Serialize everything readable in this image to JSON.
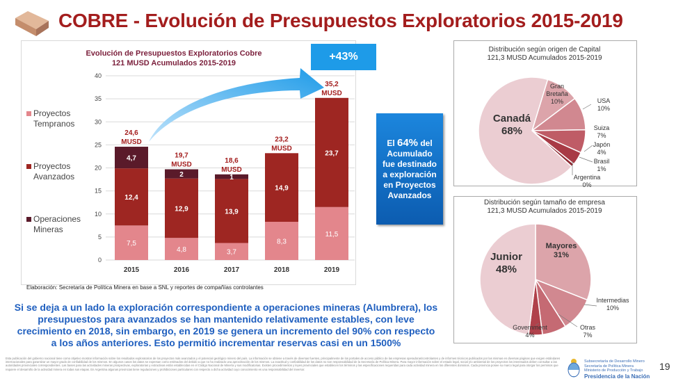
{
  "title": "COBRE - Evolución de Presupuestos Exploratorios 2015-2019",
  "growth_badge": "+43%",
  "callout": {
    "pre": "El ",
    "pct": "64%",
    "post": " del Acumulado fue destinado a exploración en Proyectos Avanzados"
  },
  "source": "Elaboración: Secretaría de Política Minera en base a SNL y reportes de compañías controlantes",
  "summary": "Si se deja a un lado la exploración correspondiente a operaciones mineras (Alumbrera), los presupuestos para avanzados se han mantenido relativamente estables, con leve crecimiento en 2018, sin embargo, en 2019 se genera un incremento del 90% con respecto a los años anteriores. Esto permitió incrementar reservas casi en un 1500%",
  "disclaimer": "Esta publicación del gobierno nacional tiene como objetivo mostrar información sobre los resultados exploratorios de los proyectos más avanzados y el potencial geológico minero del país. La información se obtiene a través de diversas fuentes, principalmente de los portales de acceso público de las empresas operadoras/controlantes y de informes técnicos publicados por las mismas en diversas páginas que exigen estándares internacionales para garantizar un mayor grado de confiabilidad de los mismos. En algunos casos los datos se expresan como estimados del debido a que no ha realizado una aproximación de los mismos. La exactitud y confiabilidad de los datos no son responsabilidad de la Secretaría de Política Minera. Para mayor información sobre el estado legal, social y/o ambiental de los proyectos los interesados deben consultar a las autoridades provinciales correspondientes. Las bases para las actividades mineras prospectivas, exploratorias y extractivas están establecidas en el Código Nacional de Minería y sus modificatorias. Existen procedimientos y leyes provinciales que establecen los términos y las especificaciones requeridas para cada actividad minera en los diferentes dominios. Cada provincia posee su marco legal para otorgar los permisos que requiere el desarrollo de la actividad minera en todas sus etapas. En Argentina algunas provincias tiene regulaciones y prohibiciones particulares con respecto a dicha actividad cuyo conocimiento es una responsabilidad del inversor.",
  "footer": {
    "org_lines": [
      "Subsecretaría de Desarrollo Minero",
      "Secretaría de Política Minera",
      "Ministerio de Producción y Trabajo"
    ],
    "presidency": "Presidencia de la Nación",
    "page_number": "19"
  },
  "colors": {
    "title": "#a31d1d",
    "tempranos": "#e3868c",
    "avanzados": "#9e2622",
    "operaciones": "#5a1a2a",
    "accent_blue": "#1e9be8"
  },
  "chart_data": [
    {
      "type": "bar",
      "stacked": true,
      "title": "Evolución de Presupuestos Exploratorios Cobre",
      "subtitle": "121 MUSD Acumulados  2015-2019",
      "categories": [
        "2015",
        "2016",
        "2017",
        "2018",
        "2019"
      ],
      "series": [
        {
          "name": "Proyectos Tempranos",
          "values": [
            7.5,
            4.8,
            3.7,
            8.3,
            11.5
          ],
          "labels": [
            "7,5",
            "4,8",
            "3,7",
            "8,3",
            "11,5"
          ]
        },
        {
          "name": "Proyectos Avanzados",
          "values": [
            12.4,
            12.9,
            13.9,
            14.9,
            23.7
          ],
          "labels": [
            "12,4",
            "12,9",
            "13,9",
            "14,9",
            "23,7"
          ]
        },
        {
          "name": "Operaciones Mineras",
          "values": [
            4.7,
            2,
            1,
            0,
            0
          ],
          "labels": [
            "4,7",
            "2",
            "1",
            "",
            ""
          ]
        }
      ],
      "totals": [
        24.6,
        19.7,
        18.6,
        23.2,
        35.2
      ],
      "total_labels": [
        "24,6",
        "19,7",
        "18,6",
        "23,2",
        "35,2"
      ],
      "total_unit": "MUSD",
      "yticks": [
        "0",
        "5",
        "10",
        "15",
        "20",
        "25",
        "30",
        "35",
        "40"
      ],
      "ylim": [
        0,
        40
      ],
      "grid": true,
      "legend": "left"
    },
    {
      "type": "pie",
      "title": "Distribución según origen de Capital",
      "subtitle": "121,3 MUSD Acumulados 2015-2019",
      "slices": [
        {
          "label": "Gran Bretaña",
          "value": 10,
          "pct": "10%",
          "color": "#dca4aa"
        },
        {
          "label": "USA",
          "value": 10,
          "pct": "10%",
          "color": "#d18890"
        },
        {
          "label": "Suiza",
          "value": 7,
          "pct": "7%",
          "color": "#bf5c66"
        },
        {
          "label": "Japón",
          "value": 4,
          "pct": "4%",
          "color": "#a83a45"
        },
        {
          "label": "Brasil",
          "value": 1,
          "pct": "1%",
          "color": "#8f2a33"
        },
        {
          "label": "Argentina",
          "value": 0,
          "pct": "0%",
          "color": "#7a1e28"
        },
        {
          "label": "Canadá",
          "value": 68,
          "pct": "68%",
          "color": "#ebcdd2"
        }
      ]
    },
    {
      "type": "pie",
      "title": "Distribución según tamaño de empresa",
      "subtitle": "121,3 MUSD Acumulados  2015-2019",
      "slices": [
        {
          "label": "Mayores",
          "value": 31,
          "pct": "31%",
          "color": "#dca4aa"
        },
        {
          "label": "Intermedias",
          "value": 10,
          "pct": "10%",
          "color": "#d18890"
        },
        {
          "label": "Otras",
          "value": 7,
          "pct": "7%",
          "color": "#c56a73"
        },
        {
          "label": "Government",
          "value": 4,
          "pct": "4%",
          "color": "#b0414b"
        },
        {
          "label": "Junior",
          "value": 48,
          "pct": "48%",
          "color": "#ebcdd2"
        }
      ]
    }
  ]
}
